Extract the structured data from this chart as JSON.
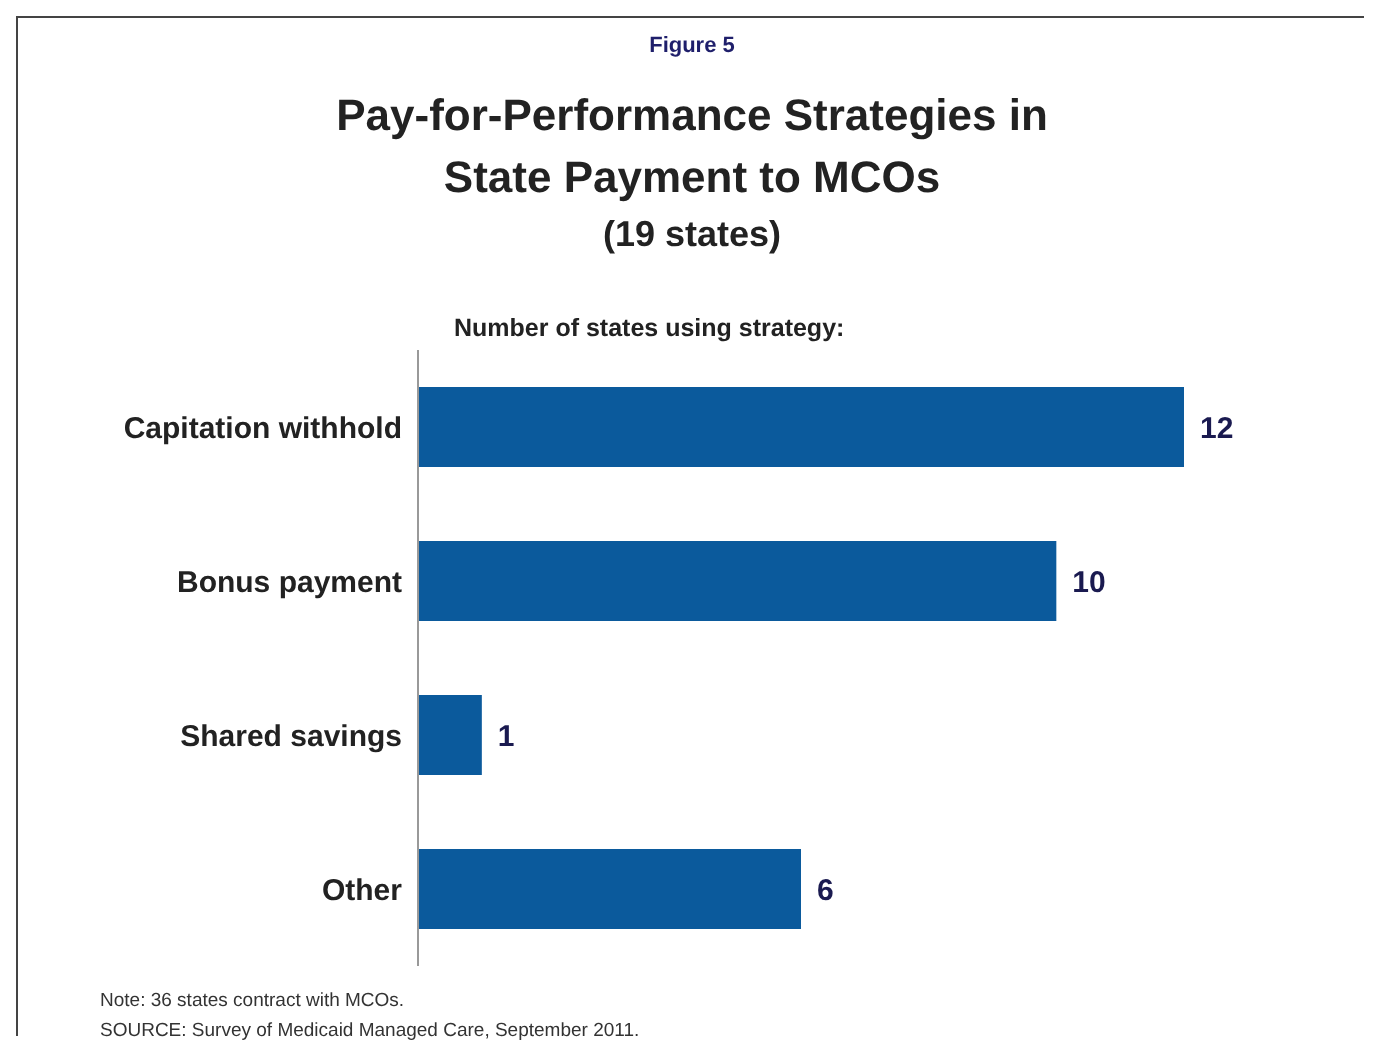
{
  "chart_data": {
    "type": "bar",
    "orientation": "horizontal",
    "title": "Pay-for-Performance Strategies in State Payment to MCOs",
    "subtitle": "(19 states)",
    "xlabel": "Number of states using strategy:",
    "annotations": [
      "Figure 5",
      "Note: 36 states contract with MCOs.",
      "SOURCE:  Survey of Medicaid Managed Care, September 2011."
    ],
    "categories": [
      "Capitation withhold",
      "Bonus payment",
      "Shared savings",
      "Other"
    ],
    "values": [
      12,
      10,
      1,
      6
    ],
    "color": "#0b5a9c",
    "data_labels": true
  }
}
